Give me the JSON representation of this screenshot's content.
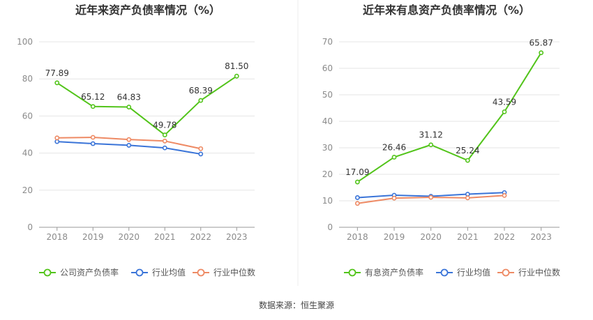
{
  "chart_data": [
    {
      "type": "line",
      "title": "近年来资产负债率情况（%）",
      "categories": [
        "2018",
        "2019",
        "2020",
        "2021",
        "2022",
        "2023"
      ],
      "ylim": [
        0,
        100
      ],
      "yticks": [
        0,
        20,
        40,
        60,
        80,
        100
      ],
      "grid": true,
      "legend_position": "bottom",
      "series": [
        {
          "name": "公司资产负债率",
          "color": "#52c41a",
          "values": [
            77.89,
            65.12,
            64.83,
            49.78,
            68.39,
            81.5
          ],
          "labels": [
            "77.89",
            "65.12",
            "64.83",
            "49.78",
            "68.39",
            "81.50"
          ]
        },
        {
          "name": "行业均值",
          "color": "#3a74d8",
          "values": [
            46.2,
            45.1,
            44.2,
            42.8,
            39.5,
            null
          ]
        },
        {
          "name": "行业中位数",
          "color": "#ee8a64",
          "values": [
            48.2,
            48.5,
            47.3,
            46.5,
            42.4,
            null
          ]
        }
      ]
    },
    {
      "type": "line",
      "title": "近年来有息资产负债率情况（%）",
      "categories": [
        "2018",
        "2019",
        "2020",
        "2021",
        "2022",
        "2023"
      ],
      "ylim": [
        0,
        70
      ],
      "yticks": [
        0,
        10,
        20,
        30,
        40,
        50,
        60,
        70
      ],
      "grid": true,
      "legend_position": "bottom",
      "series": [
        {
          "name": "有息资产负债率",
          "color": "#52c41a",
          "values": [
            17.09,
            26.46,
            31.12,
            25.24,
            43.59,
            65.87
          ],
          "labels": [
            "17.09",
            "26.46",
            "31.12",
            "25.24",
            "43.59",
            "65.87"
          ]
        },
        {
          "name": "行业均值",
          "color": "#3a74d8",
          "values": [
            11.2,
            12.1,
            11.7,
            12.5,
            13.1,
            null
          ]
        },
        {
          "name": "行业中位数",
          "color": "#ee8a64",
          "values": [
            9.0,
            11.0,
            11.3,
            11.1,
            12.0,
            null
          ]
        }
      ]
    }
  ],
  "source_text": "数据来源：恒生聚源"
}
